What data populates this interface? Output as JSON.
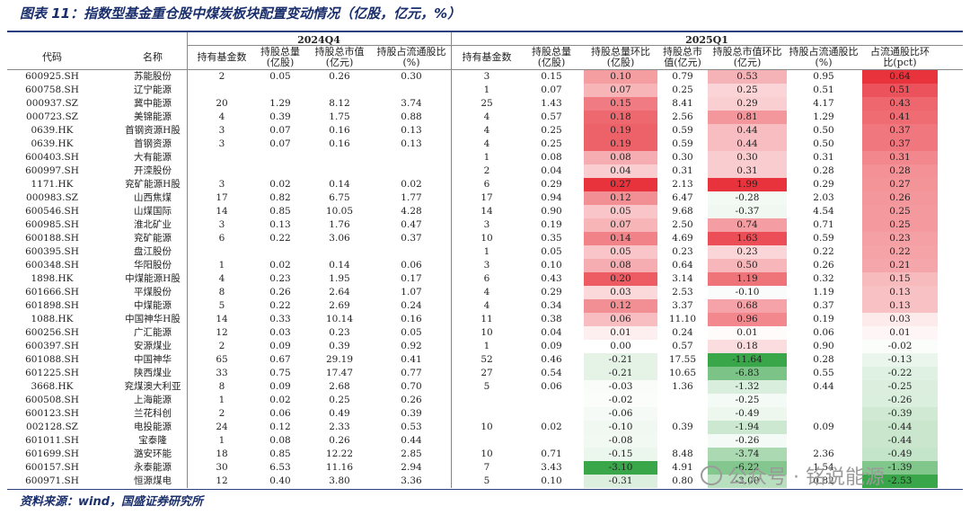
{
  "title": "图表 11：指数型基金重仓股中煤炭板块配置变动情况（亿股，亿元，%）",
  "source": "资料来源：wind，国盛证券研究所",
  "watermark": "公众号 · 铭说能源",
  "headers": {
    "code": "代码",
    "name": "名称",
    "period_q4": "2024Q4",
    "period_q1": "2025Q1",
    "q4": [
      "持有基金数",
      "持股总量\n(亿股)",
      "持股总市值\n(亿元)",
      "持股占流通股比\n(%)"
    ],
    "q1": [
      "持有基金数",
      "持股总量\n(亿股)",
      "持股总量环比\n(亿股)",
      "持股总市\n值(亿元)",
      "持股总市值环比\n(亿元)",
      "持股占流通股比\n(%)",
      "占流通股比环\n比(pct)"
    ]
  },
  "colors": {
    "red_max": "#e8323c",
    "green_max": "#3aa64a",
    "rule": "#2a3f7e"
  },
  "rows": [
    [
      "600925.SH",
      "苏能股份",
      "2",
      "0.05",
      "0.26",
      "0.30",
      "3",
      "0.15",
      "0.10",
      "0.79",
      "0.53",
      "0.95",
      "0.64"
    ],
    [
      "600758.SH",
      "辽宁能源",
      "",
      "",
      "",
      "",
      "1",
      "0.07",
      "0.07",
      "0.25",
      "0.25",
      "0.51",
      "0.51"
    ],
    [
      "000937.SZ",
      "冀中能源",
      "20",
      "1.29",
      "8.12",
      "3.74",
      "25",
      "1.43",
      "0.15",
      "8.41",
      "0.29",
      "4.17",
      "0.43"
    ],
    [
      "000723.SZ",
      "美锦能源",
      "4",
      "0.39",
      "1.75",
      "0.88",
      "4",
      "0.57",
      "0.18",
      "2.56",
      "0.81",
      "1.29",
      "0.41"
    ],
    [
      "0639.HK",
      "首钢资源H股",
      "3",
      "0.07",
      "0.16",
      "0.13",
      "4",
      "0.25",
      "0.19",
      "0.59",
      "0.44",
      "0.50",
      "0.37"
    ],
    [
      "0639.HK",
      "首钢资源",
      "3",
      "0.07",
      "0.16",
      "0.13",
      "4",
      "0.25",
      "0.19",
      "0.59",
      "0.44",
      "0.50",
      "0.37"
    ],
    [
      "600403.SH",
      "大有能源",
      "",
      "",
      "",
      "",
      "1",
      "0.08",
      "0.08",
      "0.30",
      "0.30",
      "0.31",
      "0.31"
    ],
    [
      "600997.SH",
      "开滦股份",
      "",
      "",
      "",
      "",
      "2",
      "0.04",
      "0.04",
      "0.31",
      "0.31",
      "0.28",
      "0.28"
    ],
    [
      "1171.HK",
      "兖矿能源H股",
      "3",
      "0.02",
      "0.14",
      "0.02",
      "6",
      "0.29",
      "0.27",
      "2.13",
      "1.99",
      "0.29",
      "0.27"
    ],
    [
      "000983.SZ",
      "山西焦煤",
      "17",
      "0.82",
      "6.75",
      "1.77",
      "17",
      "0.94",
      "0.12",
      "6.47",
      "-0.28",
      "2.03",
      "0.26"
    ],
    [
      "600546.SH",
      "山煤国际",
      "14",
      "0.85",
      "10.05",
      "4.28",
      "14",
      "0.90",
      "0.05",
      "9.68",
      "-0.37",
      "4.54",
      "0.25"
    ],
    [
      "600985.SH",
      "淮北矿业",
      "3",
      "0.13",
      "1.76",
      "0.47",
      "3",
      "0.19",
      "0.07",
      "2.50",
      "0.74",
      "0.71",
      "0.25"
    ],
    [
      "600188.SH",
      "兖矿能源",
      "6",
      "0.22",
      "3.06",
      "0.37",
      "10",
      "0.35",
      "0.14",
      "4.69",
      "1.63",
      "0.59",
      "0.23"
    ],
    [
      "600395.SH",
      "盘江股份",
      "",
      "",
      "",
      "",
      "1",
      "0.05",
      "0.05",
      "0.23",
      "0.23",
      "0.22",
      "0.22"
    ],
    [
      "600348.SH",
      "华阳股份",
      "1",
      "0.02",
      "0.14",
      "0.06",
      "3",
      "0.10",
      "0.08",
      "0.64",
      "0.50",
      "0.26",
      "0.21"
    ],
    [
      "1898.HK",
      "中煤能源H股",
      "4",
      "0.23",
      "1.95",
      "0.17",
      "6",
      "0.43",
      "0.20",
      "3.14",
      "1.19",
      "0.32",
      "0.15"
    ],
    [
      "601666.SH",
      "平煤股份",
      "8",
      "0.26",
      "2.64",
      "1.07",
      "4",
      "0.29",
      "0.03",
      "2.53",
      "-0.10",
      "1.19",
      "0.13"
    ],
    [
      "601898.SH",
      "中煤能源",
      "5",
      "0.22",
      "2.69",
      "0.24",
      "4",
      "0.34",
      "0.12",
      "3.37",
      "0.68",
      "0.37",
      "0.13"
    ],
    [
      "1088.HK",
      "中国神华H股",
      "14",
      "0.33",
      "10.14",
      "0.16",
      "11",
      "0.38",
      "0.06",
      "11.10",
      "0.96",
      "0.19",
      "0.03"
    ],
    [
      "600256.SH",
      "广汇能源",
      "12",
      "0.03",
      "0.23",
      "0.05",
      "10",
      "0.04",
      "0.01",
      "0.24",
      "0.01",
      "0.06",
      "0.01"
    ],
    [
      "600397.SH",
      "安源煤业",
      "2",
      "0.09",
      "0.39",
      "0.92",
      "1",
      "0.09",
      "0.00",
      "0.57",
      "0.18",
      "0.90",
      "-0.02"
    ],
    [
      "601088.SH",
      "中国神华",
      "65",
      "0.67",
      "29.19",
      "0.41",
      "52",
      "0.46",
      "-0.21",
      "17.55",
      "-11.64",
      "0.28",
      "-0.13"
    ],
    [
      "601225.SH",
      "陕西煤业",
      "33",
      "0.75",
      "17.47",
      "0.77",
      "27",
      "0.54",
      "-0.21",
      "10.65",
      "-6.83",
      "0.55",
      "-0.22"
    ],
    [
      "3668.HK",
      "兖煤澳大利亚",
      "8",
      "0.09",
      "2.68",
      "0.70",
      "5",
      "0.06",
      "-0.03",
      "1.36",
      "-1.32",
      "0.44",
      "-0.25"
    ],
    [
      "600508.SH",
      "上海能源",
      "1",
      "0.02",
      "0.25",
      "0.26",
      "",
      "",
      "-0.02",
      "",
      "-0.25",
      "",
      "-0.26"
    ],
    [
      "600123.SH",
      "兰花科创",
      "2",
      "0.06",
      "0.49",
      "0.39",
      "",
      "",
      "-0.06",
      "",
      "-0.49",
      "",
      "-0.39"
    ],
    [
      "002128.SZ",
      "电投能源",
      "24",
      "0.12",
      "2.33",
      "0.53",
      "10",
      "0.02",
      "-0.10",
      "0.39",
      "-1.94",
      "0.09",
      "-0.44"
    ],
    [
      "601011.SH",
      "宝泰隆",
      "1",
      "0.08",
      "0.26",
      "0.44",
      "",
      "",
      "-0.08",
      "",
      "-0.26",
      "",
      "-0.44"
    ],
    [
      "601699.SH",
      "潞安环能",
      "18",
      "0.85",
      "12.22",
      "2.85",
      "10",
      "0.71",
      "-0.15",
      "8.48",
      "-3.74",
      "2.36",
      "-0.49"
    ],
    [
      "600157.SH",
      "永泰能源",
      "30",
      "6.53",
      "11.16",
      "2.94",
      "7",
      "3.43",
      "-3.10",
      "4.91",
      "-6.22",
      "1.54",
      "-1.39"
    ],
    [
      "600971.SH",
      "恒源煤电",
      "12",
      "0.40",
      "3.80",
      "3.36",
      "5",
      "0.10",
      "-0.31",
      "0.80",
      "-3.00",
      "0.82",
      "-2.53"
    ]
  ]
}
